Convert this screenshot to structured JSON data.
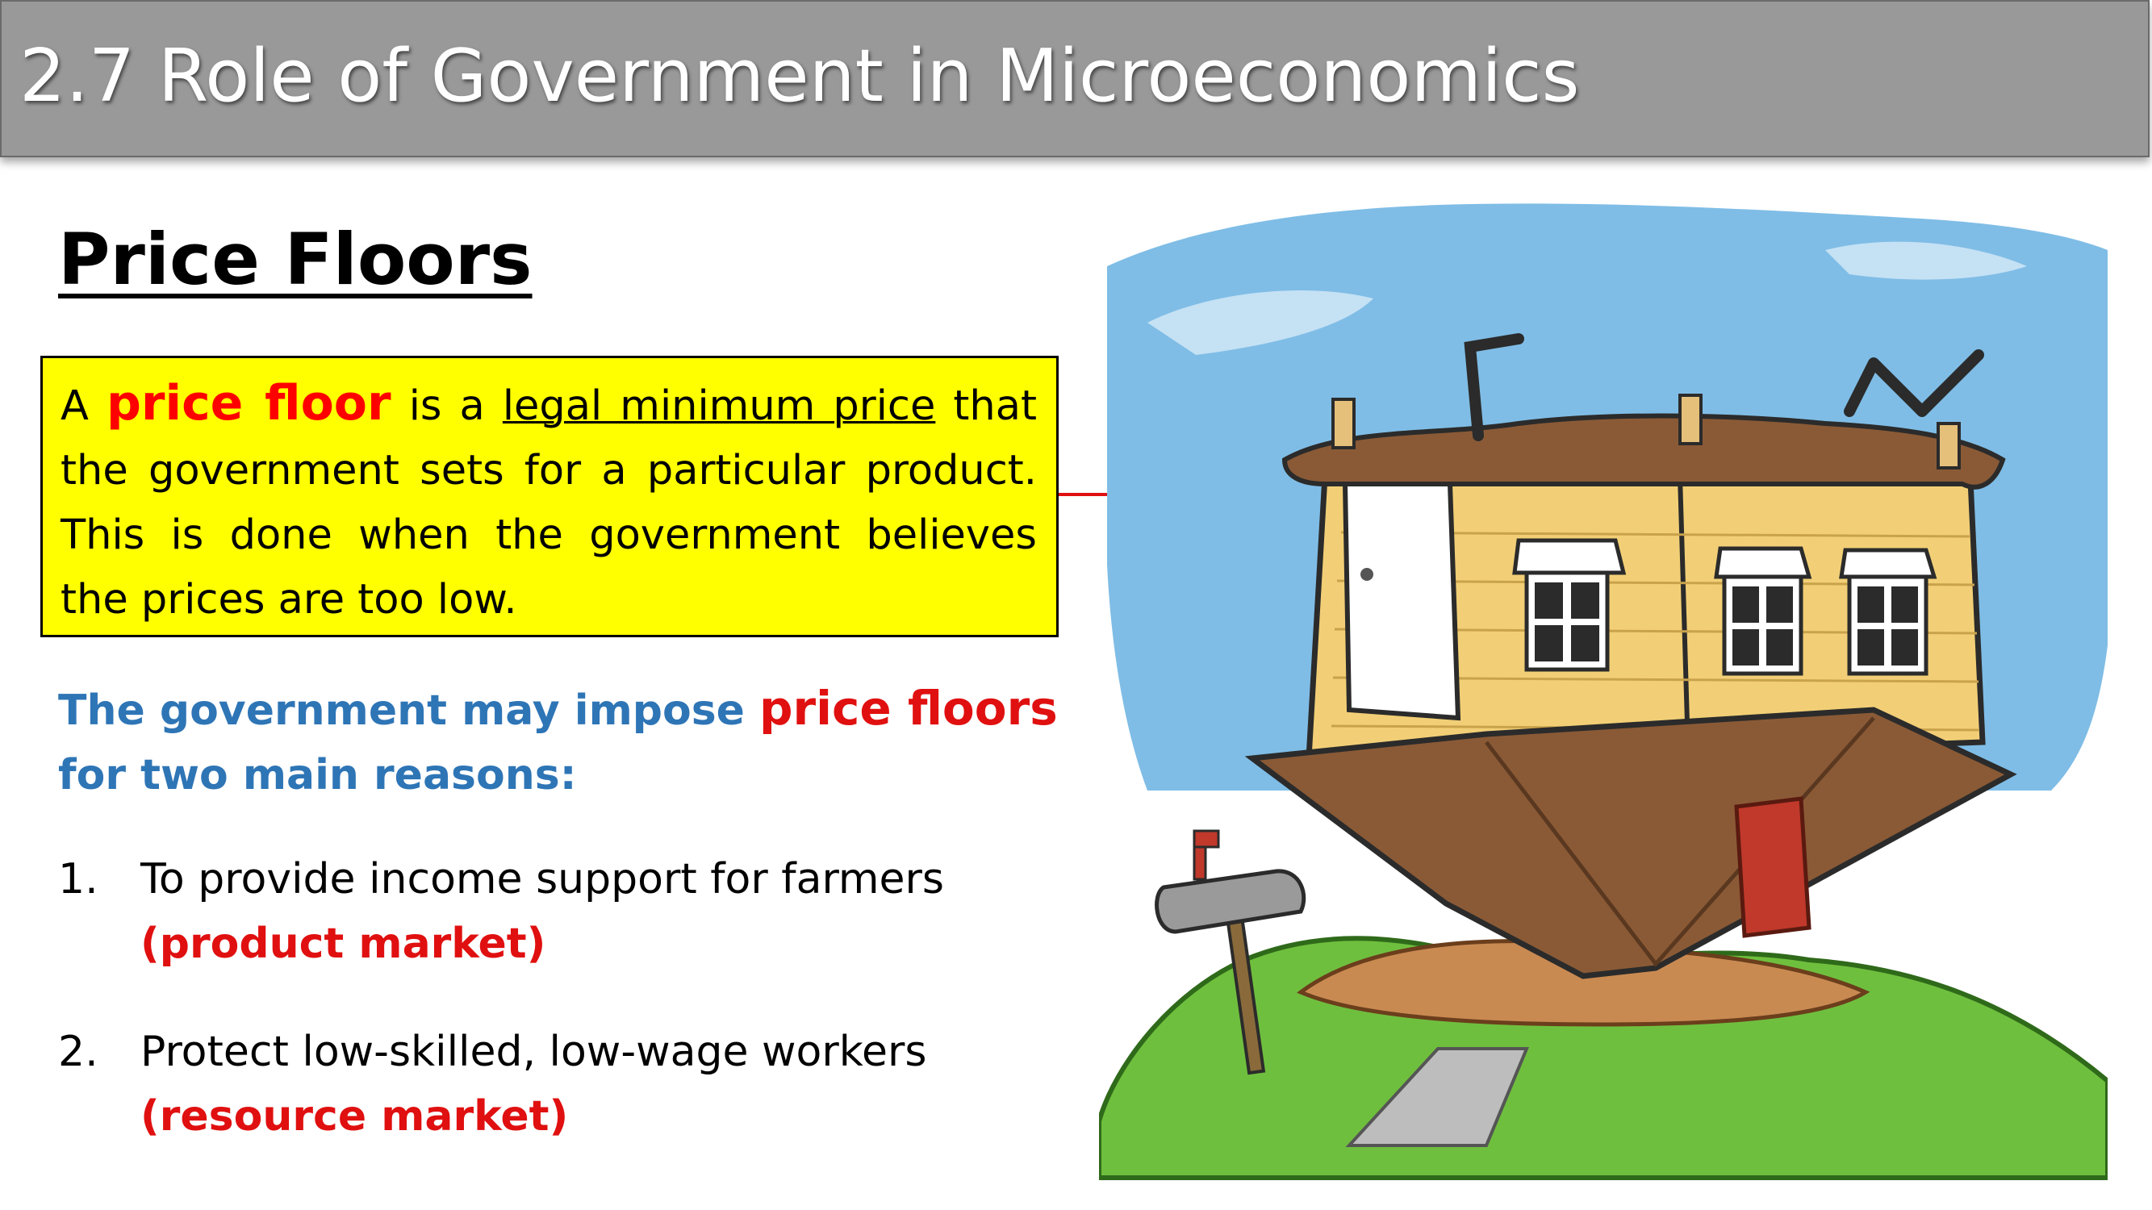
{
  "header": {
    "title": "2.7 Role of Government in Microeconomics"
  },
  "main": {
    "heading": "Price Floors",
    "definition": {
      "prefix": "A ",
      "term": "price floor",
      "middle": " is a ",
      "underlined": "legal minimum price",
      "suffix": " that the government sets for a particular product. This is done when the government believes the prices are too low."
    },
    "reasons_intro": {
      "before": "The government may impose ",
      "term": "price floors",
      "after": " for two main reasons:"
    },
    "reasons": [
      {
        "number": "1.",
        "text": "To provide income support for farmers",
        "market": "(product market)"
      },
      {
        "number": "2.",
        "text": "Protect low-skilled, low-wage workers",
        "market": "(resource market)"
      }
    ]
  },
  "illustration": {
    "icon": "upside-down-house-icon",
    "colors": {
      "sky": "#7fbde6",
      "house_wall": "#f2cf76",
      "roof": "#8a5a36",
      "grass": "#6fbf3e",
      "connector": "#e01010"
    }
  }
}
